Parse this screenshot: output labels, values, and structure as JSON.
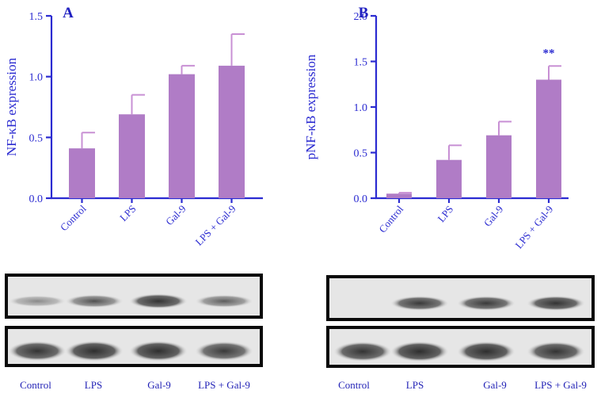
{
  "colors": {
    "bar": "#b07cc6",
    "error": "#c890d4",
    "axis": "#2b2bd1",
    "text": "#2b2bd1",
    "blot_bg": "#e6e6e6",
    "blot_border": "#0a0a0a"
  },
  "chart_data": [
    {
      "type": "bar",
      "panel_label": "A",
      "ylabel": "NF-κB expression",
      "xlabel": "",
      "categories": [
        "Control",
        "LPS",
        "Gal-9",
        "LPS + Gal-9"
      ],
      "values": [
        0.41,
        0.69,
        1.02,
        1.09
      ],
      "errors": [
        0.13,
        0.16,
        0.07,
        0.26
      ],
      "ylim": [
        0,
        1.5
      ],
      "yticks": [
        0.0,
        0.5,
        1.0,
        1.5
      ],
      "ytick_labels": [
        "0.0",
        "0.5",
        "1.0",
        "1.5"
      ],
      "annotations": [
        "",
        "",
        "",
        ""
      ],
      "grid": false
    },
    {
      "type": "bar",
      "panel_label": "B",
      "ylabel": "pNF-κB expression",
      "xlabel": "",
      "categories": [
        "Control",
        "LPS",
        "Gal-9",
        "LPS + Gal-9"
      ],
      "values": [
        0.05,
        0.42,
        0.69,
        1.3
      ],
      "errors": [
        0.01,
        0.16,
        0.15,
        0.15
      ],
      "ylim": [
        0,
        2.0
      ],
      "yticks": [
        0.0,
        0.5,
        1.0,
        1.5,
        2.0
      ],
      "ytick_labels": [
        "0.0",
        "0.5",
        "1.0",
        "1.5",
        "2.0"
      ],
      "annotations": [
        "",
        "",
        "",
        "**"
      ],
      "grid": false
    }
  ],
  "blots": [
    {
      "lane_labels": [
        "Control",
        "LPS",
        "Gal-9",
        "LPS + Gal-9"
      ],
      "top_band_intensity": [
        0.4,
        0.65,
        0.9,
        0.6
      ],
      "bottom_band_intensity": [
        0.9,
        0.95,
        0.95,
        0.85
      ]
    },
    {
      "lane_labels": [
        "Control",
        "LPS",
        "Gal-9",
        "LPS + Gal-9"
      ],
      "top_band_intensity": [
        0.0,
        0.85,
        0.85,
        0.9
      ],
      "bottom_band_intensity": [
        0.9,
        0.95,
        0.95,
        0.9
      ]
    }
  ]
}
